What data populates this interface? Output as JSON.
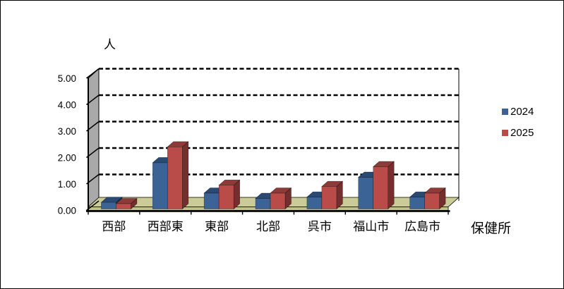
{
  "window": {
    "background": "#FFFFFF",
    "border_color": "#000000"
  },
  "chart_data": {
    "type": "bar",
    "variant": "3d-column",
    "title": "",
    "ylabel": "人",
    "xlabel": "保健所",
    "categories": [
      "西部",
      "西部東",
      "東部",
      "北部",
      "呉市",
      "福山市",
      "広島市"
    ],
    "series": [
      {
        "name": "2024",
        "values": [
          0.25,
          1.75,
          0.6,
          0.4,
          0.45,
          1.2,
          0.45
        ],
        "color": "#3C6395",
        "color_top": "#2A4A73",
        "color_side": "#213A5C"
      },
      {
        "name": "2025",
        "values": [
          0.2,
          2.35,
          0.9,
          0.6,
          0.85,
          1.6,
          0.6
        ],
        "color": "#B94B48",
        "color_top": "#8E3A39",
        "color_side": "#732E2D"
      }
    ],
    "y_ticks": [
      "0.00",
      "1.00",
      "2.00",
      "3.00",
      "4.00",
      "5.00"
    ],
    "ylim": [
      0,
      5
    ],
    "grid": "dashed-horizontal",
    "legend_position": "right",
    "colors": {
      "wall": "#A9A9A9",
      "floor": "#CBCB98",
      "floor_front": "#C1C18F",
      "axis": "#000000",
      "text": "#000000"
    }
  }
}
